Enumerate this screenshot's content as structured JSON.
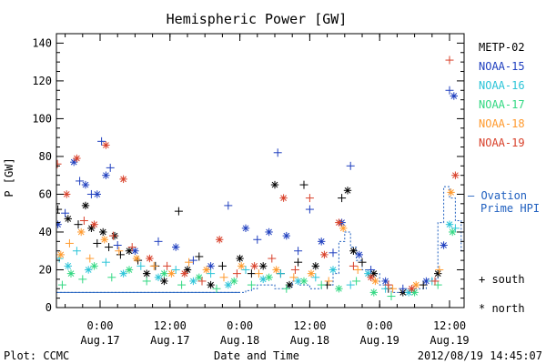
{
  "chart_data": {
    "type": "scatter",
    "title": "Hemispheric Power [GW]",
    "xlabel": "Date and Time",
    "ylabel": "P [GW]",
    "ylim": [
      0,
      145
    ],
    "yticks": [
      0,
      20,
      40,
      60,
      80,
      100,
      120,
      140
    ],
    "xlim": [
      "2012-08-16T16:30",
      "2012-08-19T14:30"
    ],
    "xticks": [
      {
        "x": "2012-08-17T00:00",
        "time": "0:00",
        "date": "Aug.17"
      },
      {
        "x": "2012-08-17T12:00",
        "time": "12:00",
        "date": "Aug.17"
      },
      {
        "x": "2012-08-18T00:00",
        "time": "0:00",
        "date": "Aug.18"
      },
      {
        "x": "2012-08-18T12:00",
        "time": "12:00",
        "date": "Aug.18"
      },
      {
        "x": "2012-08-19T00:00",
        "time": "0:00",
        "date": "Aug.19"
      },
      {
        "x": "2012-08-19T12:00",
        "time": "12:00",
        "date": "Aug.19"
      }
    ],
    "legend": {
      "placement": "right",
      "series": [
        "METP-02",
        "NOAA-15",
        "NOAA-16",
        "NOAA-17",
        "NOAA-18",
        "NOAA-19"
      ],
      "ovation_label": "— Ovation",
      "ovation_label2": "Prime HPI",
      "south_label": "+ south",
      "north_label": "* north"
    },
    "footer": {
      "left": "Plot: CCMC",
      "right": "2012/08/19 14:45:07"
    },
    "colors": {
      "METP-02": "#000000",
      "NOAA-15": "#1f3fbf",
      "NOAA-16": "#2bc4d8",
      "NOAA-17": "#32d882",
      "NOAA-18": "#ff9a2e",
      "NOAA-19": "#d8402a",
      "ovation": "#1f5fbf",
      "axis": "#000000"
    },
    "ovation_hpi": [
      [
        "2012-08-16T16:30",
        8
      ],
      [
        "2012-08-17T00:00",
        8
      ],
      [
        "2012-08-17T12:00",
        8
      ],
      [
        "2012-08-18T00:00",
        8
      ],
      [
        "2012-08-18T01:00",
        9
      ],
      [
        "2012-08-18T02:00",
        10
      ],
      [
        "2012-08-18T03:00",
        12
      ],
      [
        "2012-08-18T06:00",
        10
      ],
      [
        "2012-08-18T08:00",
        11
      ],
      [
        "2012-08-18T09:00",
        14
      ],
      [
        "2012-08-18T10:00",
        12
      ],
      [
        "2012-08-18T12:00",
        10
      ],
      [
        "2012-08-18T14:00",
        12
      ],
      [
        "2012-08-18T16:00",
        18
      ],
      [
        "2012-08-18T17:00",
        35
      ],
      [
        "2012-08-18T18:00",
        40
      ],
      [
        "2012-08-18T19:00",
        32
      ],
      [
        "2012-08-18T20:00",
        25
      ],
      [
        "2012-08-18T21:00",
        20
      ],
      [
        "2012-08-18T22:00",
        18
      ],
      [
        "2012-08-19T00:00",
        12
      ],
      [
        "2012-08-19T02:00",
        8
      ],
      [
        "2012-08-19T04:00",
        8
      ],
      [
        "2012-08-19T06:00",
        10
      ],
      [
        "2012-08-19T08:00",
        15
      ],
      [
        "2012-08-19T10:00",
        45
      ],
      [
        "2012-08-19T11:00",
        64
      ],
      [
        "2012-08-19T12:00",
        58
      ],
      [
        "2012-08-19T13:00",
        46
      ],
      [
        "2012-08-19T14:00",
        30
      ]
    ],
    "series": [
      {
        "name": "METP-02",
        "points": [
          [
            "2012-08-16T16:45",
            52,
            "+"
          ],
          [
            "2012-08-16T18:30",
            47,
            "*"
          ],
          [
            "2012-08-16T20:15",
            44,
            "+"
          ],
          [
            "2012-08-16T21:30",
            54,
            "*"
          ],
          [
            "2012-08-16T22:30",
            42,
            "*"
          ],
          [
            "2012-08-16T23:30",
            34,
            "+"
          ],
          [
            "2012-08-17T00:30",
            40,
            "*"
          ],
          [
            "2012-08-17T01:30",
            32,
            "+"
          ],
          [
            "2012-08-17T02:30",
            38,
            "*"
          ],
          [
            "2012-08-17T03:30",
            28,
            "+"
          ],
          [
            "2012-08-17T05:00",
            30,
            "*"
          ],
          [
            "2012-08-17T06:30",
            25,
            "+"
          ],
          [
            "2012-08-17T08:00",
            18,
            "*"
          ],
          [
            "2012-08-17T09:30",
            22,
            "+"
          ],
          [
            "2012-08-17T11:00",
            14,
            "*"
          ],
          [
            "2012-08-17T13:30",
            51,
            "+"
          ],
          [
            "2012-08-17T15:00",
            20,
            "*"
          ],
          [
            "2012-08-17T17:00",
            27,
            "+"
          ],
          [
            "2012-08-17T19:00",
            12,
            "*"
          ],
          [
            "2012-08-17T21:00",
            22,
            "+"
          ],
          [
            "2012-08-18T00:00",
            26,
            "*"
          ],
          [
            "2012-08-18T02:00",
            18,
            "+"
          ],
          [
            "2012-08-18T04:00",
            22,
            "*"
          ],
          [
            "2012-08-18T06:00",
            65,
            "*"
          ],
          [
            "2012-08-18T07:00",
            18,
            "+"
          ],
          [
            "2012-08-18T08:30",
            12,
            "*"
          ],
          [
            "2012-08-18T10:00",
            24,
            "+"
          ],
          [
            "2012-08-18T11:00",
            65,
            "+"
          ],
          [
            "2012-08-18T13:00",
            22,
            "*"
          ],
          [
            "2012-08-18T15:00",
            12,
            "+"
          ],
          [
            "2012-08-18T17:30",
            58,
            "+"
          ],
          [
            "2012-08-18T18:30",
            62,
            "*"
          ],
          [
            "2012-08-18T19:30",
            30,
            "*"
          ],
          [
            "2012-08-18T21:00",
            24,
            "+"
          ],
          [
            "2012-08-18T23:00",
            18,
            "*"
          ],
          [
            "2012-08-19T01:30",
            10,
            "+"
          ],
          [
            "2012-08-19T04:00",
            8,
            "*"
          ],
          [
            "2012-08-19T07:30",
            12,
            "+"
          ],
          [
            "2012-08-19T10:00",
            18,
            "*"
          ]
        ]
      },
      {
        "name": "NOAA-15",
        "points": [
          [
            "2012-08-16T16:45",
            44,
            "*"
          ],
          [
            "2012-08-16T18:00",
            50,
            "+"
          ],
          [
            "2012-08-16T19:30",
            77,
            "*"
          ],
          [
            "2012-08-16T20:30",
            67,
            "+"
          ],
          [
            "2012-08-16T21:30",
            65,
            "*"
          ],
          [
            "2012-08-16T22:30",
            60,
            "+"
          ],
          [
            "2012-08-16T23:30",
            60,
            "*"
          ],
          [
            "2012-08-17T00:15",
            88,
            "+"
          ],
          [
            "2012-08-17T01:00",
            70,
            "*"
          ],
          [
            "2012-08-17T01:45",
            74,
            "+"
          ],
          [
            "2012-08-17T03:00",
            33,
            "+"
          ],
          [
            "2012-08-17T06:00",
            30,
            "*"
          ],
          [
            "2012-08-17T10:00",
            35,
            "+"
          ],
          [
            "2012-08-17T13:00",
            32,
            "*"
          ],
          [
            "2012-08-17T16:00",
            25,
            "+"
          ],
          [
            "2012-08-17T19:00",
            22,
            "*"
          ],
          [
            "2012-08-17T22:00",
            54,
            "+"
          ],
          [
            "2012-08-18T01:00",
            42,
            "*"
          ],
          [
            "2012-08-18T03:00",
            36,
            "+"
          ],
          [
            "2012-08-18T05:00",
            40,
            "*"
          ],
          [
            "2012-08-18T06:30",
            82,
            "+"
          ],
          [
            "2012-08-18T08:00",
            38,
            "*"
          ],
          [
            "2012-08-18T10:00",
            30,
            "+"
          ],
          [
            "2012-08-18T12:00",
            52,
            "+"
          ],
          [
            "2012-08-18T14:00",
            35,
            "*"
          ],
          [
            "2012-08-18T16:00",
            29,
            "+"
          ],
          [
            "2012-08-18T17:30",
            45,
            "*"
          ],
          [
            "2012-08-18T19:00",
            75,
            "+"
          ],
          [
            "2012-08-18T20:30",
            28,
            "*"
          ],
          [
            "2012-08-18T22:30",
            20,
            "+"
          ],
          [
            "2012-08-19T01:00",
            14,
            "*"
          ],
          [
            "2012-08-19T04:00",
            10,
            "+"
          ],
          [
            "2012-08-19T08:00",
            14,
            "*"
          ],
          [
            "2012-08-19T11:00",
            33,
            "*"
          ],
          [
            "2012-08-19T12:00",
            115,
            "+"
          ],
          [
            "2012-08-19T12:45",
            112,
            "*"
          ]
        ]
      },
      {
        "name": "NOAA-16",
        "points": [
          [
            "2012-08-16T17:00",
            26,
            "+"
          ],
          [
            "2012-08-16T18:30",
            22,
            "*"
          ],
          [
            "2012-08-16T20:00",
            30,
            "+"
          ],
          [
            "2012-08-16T22:00",
            20,
            "*"
          ],
          [
            "2012-08-17T01:00",
            24,
            "+"
          ],
          [
            "2012-08-17T04:00",
            18,
            "*"
          ],
          [
            "2012-08-17T07:00",
            22,
            "+"
          ],
          [
            "2012-08-17T10:00",
            16,
            "*"
          ],
          [
            "2012-08-17T13:00",
            20,
            "+"
          ],
          [
            "2012-08-17T16:00",
            14,
            "*"
          ],
          [
            "2012-08-17T19:00",
            18,
            "+"
          ],
          [
            "2012-08-17T22:00",
            12,
            "*"
          ],
          [
            "2012-08-18T01:00",
            20,
            "+"
          ],
          [
            "2012-08-18T04:00",
            15,
            "*"
          ],
          [
            "2012-08-18T07:00",
            18,
            "+"
          ],
          [
            "2012-08-18T10:00",
            14,
            "*"
          ],
          [
            "2012-08-18T13:00",
            16,
            "+"
          ],
          [
            "2012-08-18T16:00",
            20,
            "*"
          ],
          [
            "2012-08-18T19:00",
            12,
            "+"
          ],
          [
            "2012-08-18T22:00",
            18,
            "*"
          ],
          [
            "2012-08-19T01:00",
            10,
            "+"
          ],
          [
            "2012-08-19T05:00",
            8,
            "*"
          ],
          [
            "2012-08-19T09:00",
            14,
            "+"
          ],
          [
            "2012-08-19T12:00",
            44,
            "*"
          ],
          [
            "2012-08-19T13:00",
            42,
            "+"
          ]
        ]
      },
      {
        "name": "NOAA-17",
        "points": [
          [
            "2012-08-16T17:30",
            12,
            "+"
          ],
          [
            "2012-08-16T19:00",
            18,
            "*"
          ],
          [
            "2012-08-16T21:00",
            15,
            "+"
          ],
          [
            "2012-08-16T23:00",
            22,
            "*"
          ],
          [
            "2012-08-17T02:00",
            16,
            "+"
          ],
          [
            "2012-08-17T05:00",
            20,
            "*"
          ],
          [
            "2012-08-17T08:00",
            14,
            "+"
          ],
          [
            "2012-08-17T11:00",
            18,
            "*"
          ],
          [
            "2012-08-17T14:00",
            12,
            "+"
          ],
          [
            "2012-08-17T17:00",
            16,
            "*"
          ],
          [
            "2012-08-17T20:00",
            10,
            "+"
          ],
          [
            "2012-08-17T23:00",
            14,
            "*"
          ],
          [
            "2012-08-18T02:00",
            12,
            "+"
          ],
          [
            "2012-08-18T05:00",
            16,
            "*"
          ],
          [
            "2012-08-18T08:00",
            10,
            "+"
          ],
          [
            "2012-08-18T11:00",
            14,
            "*"
          ],
          [
            "2012-08-18T14:00",
            12,
            "+"
          ],
          [
            "2012-08-18T17:00",
            10,
            "*"
          ],
          [
            "2012-08-18T20:00",
            14,
            "+"
          ],
          [
            "2012-08-18T23:00",
            8,
            "*"
          ],
          [
            "2012-08-19T02:00",
            6,
            "+"
          ],
          [
            "2012-08-19T06:00",
            8,
            "*"
          ],
          [
            "2012-08-19T10:00",
            12,
            "+"
          ],
          [
            "2012-08-19T12:30",
            40,
            "*"
          ]
        ]
      },
      {
        "name": "NOAA-18",
        "points": [
          [
            "2012-08-16T17:15",
            28,
            "*"
          ],
          [
            "2012-08-16T18:45",
            34,
            "+"
          ],
          [
            "2012-08-16T20:45",
            40,
            "*"
          ],
          [
            "2012-08-16T22:15",
            26,
            "+"
          ],
          [
            "2012-08-17T00:45",
            36,
            "*"
          ],
          [
            "2012-08-17T03:15",
            30,
            "+"
          ],
          [
            "2012-08-17T06:15",
            26,
            "*"
          ],
          [
            "2012-08-17T09:15",
            22,
            "+"
          ],
          [
            "2012-08-17T12:15",
            18,
            "*"
          ],
          [
            "2012-08-17T15:15",
            24,
            "+"
          ],
          [
            "2012-08-17T18:15",
            20,
            "*"
          ],
          [
            "2012-08-17T21:15",
            16,
            "+"
          ],
          [
            "2012-08-18T00:15",
            22,
            "*"
          ],
          [
            "2012-08-18T03:15",
            18,
            "+"
          ],
          [
            "2012-08-18T06:15",
            20,
            "*"
          ],
          [
            "2012-08-18T09:15",
            16,
            "+"
          ],
          [
            "2012-08-18T12:15",
            18,
            "*"
          ],
          [
            "2012-08-18T15:15",
            14,
            "+"
          ],
          [
            "2012-08-18T17:45",
            42,
            "*"
          ],
          [
            "2012-08-18T20:15",
            20,
            "+"
          ],
          [
            "2012-08-18T23:15",
            14,
            "*"
          ],
          [
            "2012-08-19T02:15",
            10,
            "+"
          ],
          [
            "2012-08-19T06:15",
            12,
            "*"
          ],
          [
            "2012-08-19T10:15",
            20,
            "+"
          ],
          [
            "2012-08-19T12:15",
            61,
            "*"
          ]
        ]
      },
      {
        "name": "NOAA-19",
        "points": [
          [
            "2012-08-16T16:40",
            76,
            "+"
          ],
          [
            "2012-08-16T18:15",
            60,
            "*"
          ],
          [
            "2012-08-16T20:00",
            79,
            "*"
          ],
          [
            "2012-08-16T21:15",
            46,
            "+"
          ],
          [
            "2012-08-16T23:00",
            44,
            "*"
          ],
          [
            "2012-08-17T01:00",
            86,
            "*"
          ],
          [
            "2012-08-17T02:15",
            38,
            "+"
          ],
          [
            "2012-08-17T04:00",
            68,
            "*"
          ],
          [
            "2012-08-17T05:30",
            32,
            "+"
          ],
          [
            "2012-08-17T08:30",
            26,
            "*"
          ],
          [
            "2012-08-17T11:30",
            22,
            "+"
          ],
          [
            "2012-08-17T14:30",
            18,
            "*"
          ],
          [
            "2012-08-17T17:30",
            14,
            "+"
          ],
          [
            "2012-08-17T20:30",
            36,
            "*"
          ],
          [
            "2012-08-17T23:30",
            18,
            "+"
          ],
          [
            "2012-08-18T02:30",
            22,
            "*"
          ],
          [
            "2012-08-18T05:30",
            26,
            "+"
          ],
          [
            "2012-08-18T07:30",
            58,
            "*"
          ],
          [
            "2012-08-18T09:30",
            20,
            "+"
          ],
          [
            "2012-08-18T12:00",
            58,
            "+"
          ],
          [
            "2012-08-18T14:30",
            28,
            "*"
          ],
          [
            "2012-08-18T17:00",
            45,
            "*"
          ],
          [
            "2012-08-18T19:30",
            22,
            "+"
          ],
          [
            "2012-08-18T22:30",
            16,
            "*"
          ],
          [
            "2012-08-19T01:30",
            12,
            "+"
          ],
          [
            "2012-08-19T05:30",
            10,
            "*"
          ],
          [
            "2012-08-19T09:30",
            14,
            "+"
          ],
          [
            "2012-08-19T12:00",
            131,
            "+"
          ],
          [
            "2012-08-19T13:00",
            70,
            "*"
          ]
        ]
      }
    ]
  }
}
